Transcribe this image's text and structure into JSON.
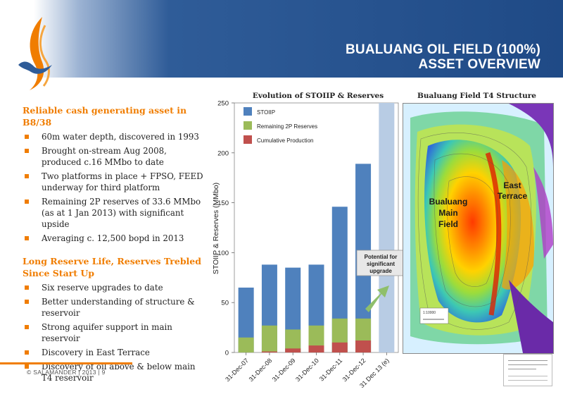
{
  "header": {
    "title_line1": "BUALUANG OIL FIELD (100%)",
    "title_line2": "ASSET OVERVIEW"
  },
  "left": {
    "section1": {
      "heading": "Reliable cash generating asset in B8/38",
      "bullets": [
        "60m water depth, discovered in 1993",
        "Brought on-stream Aug 2008, produced c.16 MMbo to date",
        "Two platforms in place + FPSO, FEED underway for third platform",
        "Remaining 2P reserves of 33.6 MMbo (as at 1 Jan 2013) with significant upside",
        "Averaging c. 12,500 bopd in 2013"
      ]
    },
    "section2": {
      "heading": "Long Reserve Life, Reserves Trebled Since Start Up",
      "bullets": [
        "Six reserve upgrades to date",
        "Better understanding of structure & reservoir",
        "Strong aquifer support in main reservoir",
        "Discovery in East Terrace",
        "Discovery of oil above & below main T4 reservoir"
      ]
    }
  },
  "chart_data": {
    "type": "bar",
    "title": "Evolution of STOIIP & Reserves",
    "ylabel": "STOIIP & Reserves (MMbo)",
    "ylim": [
      0,
      250
    ],
    "yticks": [
      "0",
      "50",
      "100",
      "150",
      "200",
      "250"
    ],
    "categories": [
      "31-Dec-07",
      "31-Dec-08",
      "31-Dec-09",
      "31-Dec-10",
      "31-Dec-11",
      "31-Dec-12",
      "31 Dec 13 (e)"
    ],
    "series": [
      {
        "name": "STOIIP",
        "values": [
          65,
          88,
          85,
          88,
          146,
          189,
          null
        ]
      },
      {
        "name": "Remaining 2P Reserves",
        "values": [
          15,
          27,
          23,
          27,
          34,
          34,
          null
        ]
      },
      {
        "name": "Cumulative Production",
        "values": [
          0,
          1,
          4,
          7,
          10,
          12,
          null
        ]
      }
    ],
    "potential_value": 250,
    "annotation": "Potential for significant upgrade",
    "legend_position": "top-left",
    "colors": {
      "stoiip": "#4f81bd",
      "reserves": "#9bbb59",
      "production": "#c0504d",
      "potential": "#b8cce4",
      "arrow": "#8fbf6b"
    }
  },
  "map": {
    "title": "Bualuang Field T4 Structure",
    "label_main": "Bualuang Main Field",
    "label_east": "East Terrace",
    "scale_text": "1:10000"
  },
  "footer": {
    "text": "© SALAMANDER | 2013 | 9"
  }
}
